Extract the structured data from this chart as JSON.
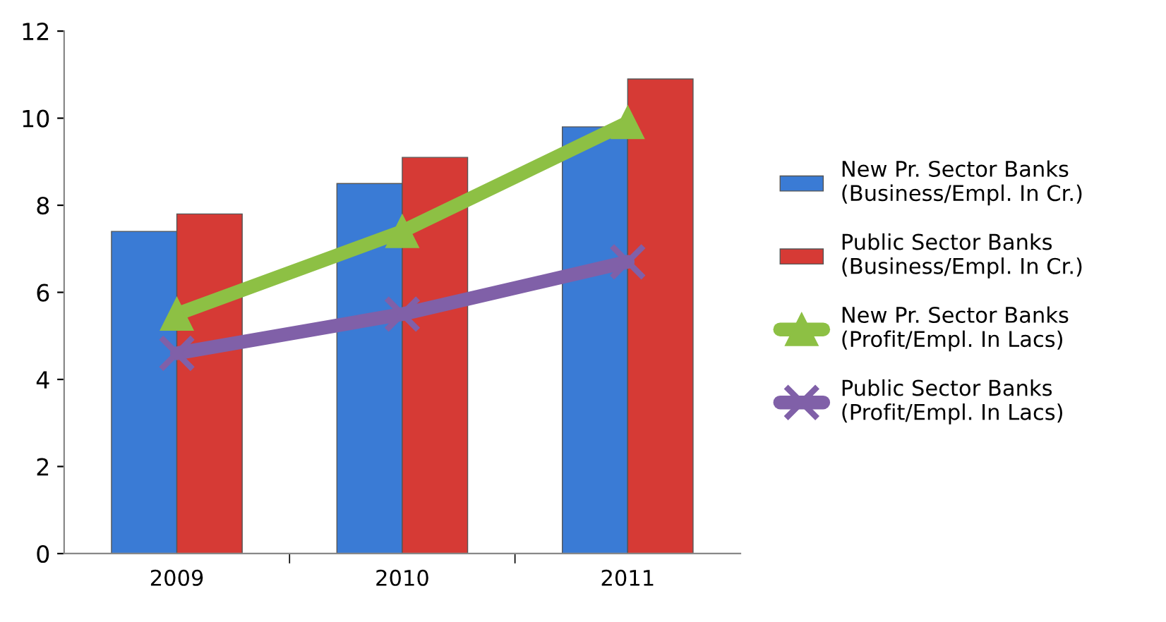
{
  "chart_data": {
    "type": "bar",
    "categories": [
      "2009",
      "2010",
      "2011"
    ],
    "series": [
      {
        "name": "New Pr. Sector Banks\n(Business/Empl. In Cr.)",
        "color": "#3a7bd5",
        "values": [
          7.4,
          8.5,
          9.8
        ]
      },
      {
        "name": "Public Sector Banks\n(Business/Empl. In Cr.)",
        "color": "#d63a35",
        "values": [
          7.8,
          9.1,
          10.9
        ]
      },
      {
        "name": "New Pr. Sector Banks\n(Profit/Empl. In Lacs)",
        "type": "line",
        "marker": "triangle",
        "color": "#8dc044",
        "values": [
          5.5,
          7.4,
          9.9
        ]
      },
      {
        "name": "Public Sector Banks\n(Profit/Empl. In Lacs)",
        "type": "line",
        "marker": "cross",
        "color": "#8060a8",
        "values": [
          4.6,
          5.5,
          6.7
        ]
      }
    ],
    "ylim": [
      0,
      12
    ],
    "yticks": [
      0,
      2,
      4,
      6,
      8,
      10,
      12
    ],
    "grid": false,
    "legend": "right"
  }
}
